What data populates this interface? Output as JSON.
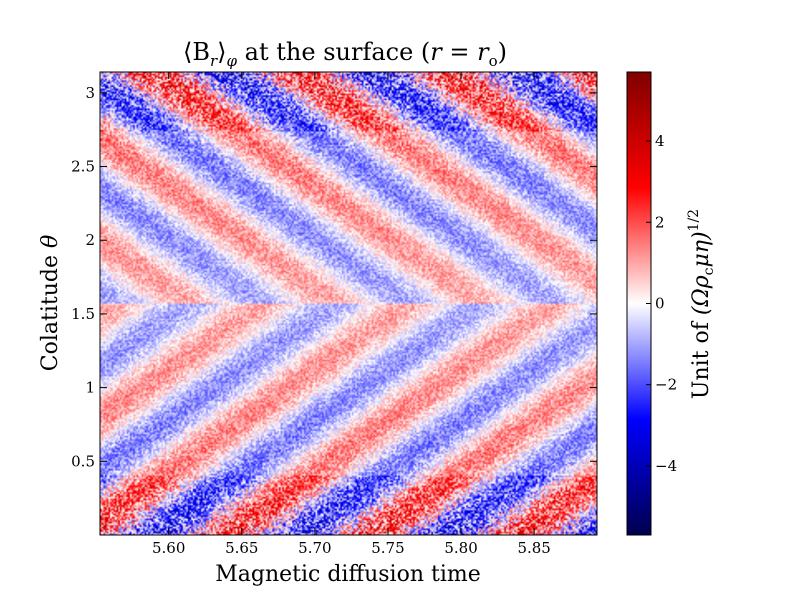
{
  "chart_data": {
    "type": "heatmap",
    "title": "⟨B_r⟩_φ at the surface (r = r_o)",
    "title_parts": {
      "pre": "⟨B",
      "sub_r": "r",
      "mid": "⟩",
      "sub_phi": "φ",
      "text": " at the surface (",
      "r": "r",
      "eq": " = ",
      "ro": "r",
      "ro_sub": "o",
      "close": ")"
    },
    "xlabel": "Magnetic diffusion time",
    "ylabel_text": "Colatitude ",
    "ylabel_symbol": "θ",
    "colorbar_label_text": "Unit of ",
    "colorbar_label_math": "(Ωρ",
    "colorbar_label_sub": "c",
    "colorbar_label_math2": "μη)",
    "colorbar_label_sup": "1/2",
    "xlim": [
      5.553,
      5.893
    ],
    "ylim": [
      0,
      3.14159
    ],
    "x_ticks": [
      5.6,
      5.65,
      5.7,
      5.75,
      5.8,
      5.85
    ],
    "x_tick_labels": [
      "5.60",
      "5.65",
      "5.70",
      "5.75",
      "5.80",
      "5.85"
    ],
    "y_ticks": [
      0.5,
      1,
      1.5,
      2,
      2.5,
      3
    ],
    "y_tick_labels": [
      "0.5",
      "1",
      "1.5",
      "2",
      "2.5",
      "3"
    ],
    "colorbar": {
      "cmap": "seismic",
      "vmin": -5.7,
      "vmax": 5.7,
      "ticks": [
        -4,
        -2,
        0,
        2,
        4
      ],
      "tick_labels": [
        "−4",
        "−2",
        "0",
        "2",
        "4"
      ],
      "colors": [
        "#00004d",
        "#0000ff",
        "#ffffff",
        "#ff0000",
        "#800000"
      ]
    },
    "pattern": {
      "description_of_field": "butterfly-like dynamo waves migrating from equator toward poles",
      "period": 0.1,
      "equator_theta": 1.5708,
      "peak_amplitude": 1.6,
      "noise_amplitude": 0.7
    }
  }
}
